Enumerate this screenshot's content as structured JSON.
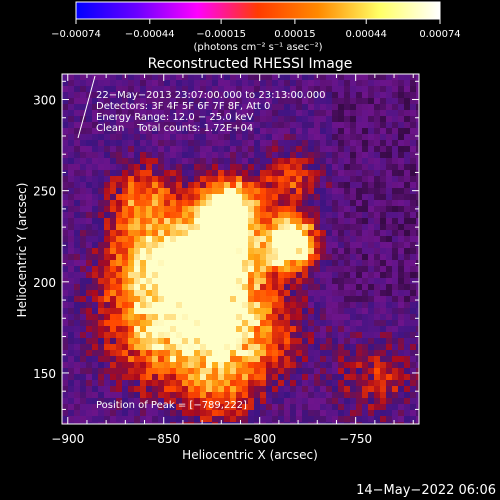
{
  "colorbar": {
    "tick_labels": [
      "−0.00074",
      "−0.00044",
      "−0.00015",
      "0.00015",
      "0.00044",
      "0.00074"
    ],
    "unit_label": "(photons cm⁻² s⁻¹ asec⁻²)",
    "range": [
      -0.00074,
      0.00074
    ],
    "colors": [
      "#0000ff",
      "#6a00ff",
      "#ff00ff",
      "#ff3b00",
      "#ff8a00",
      "#ffff66",
      "#ffffff"
    ]
  },
  "info": {
    "time_range": "22−May−2013 23:07:00.000 to 23:13:00.000",
    "detectors": "Detectors: 3F 4F 5F 6F 7F 8F, Att 0",
    "energy": "Energy Range: 12.0 − 25.0 keV",
    "clean": "Clean    Total counts: 1.72E+04",
    "peak": "Position of Peak = [−789,222]"
  },
  "timestamp": "14−May−2022 06:06",
  "chart_data": {
    "type": "heatmap",
    "title": "Reconstructed RHESSI Image",
    "xlabel": "Heliocentric X (arcsec)",
    "ylabel": "Heliocentric Y (arcsec)",
    "xlim": [
      -903,
      -717
    ],
    "ylim": [
      122,
      314
    ],
    "x_ticks": [
      -900,
      -850,
      -800,
      -750
    ],
    "x_tick_labels": [
      "−900",
      "−850",
      "−800",
      "−750"
    ],
    "y_ticks": [
      150,
      200,
      250,
      300
    ],
    "y_tick_labels": [
      "150",
      "200",
      "250",
      "300"
    ],
    "peak": [
      -789,
      222
    ],
    "grid": false
  }
}
